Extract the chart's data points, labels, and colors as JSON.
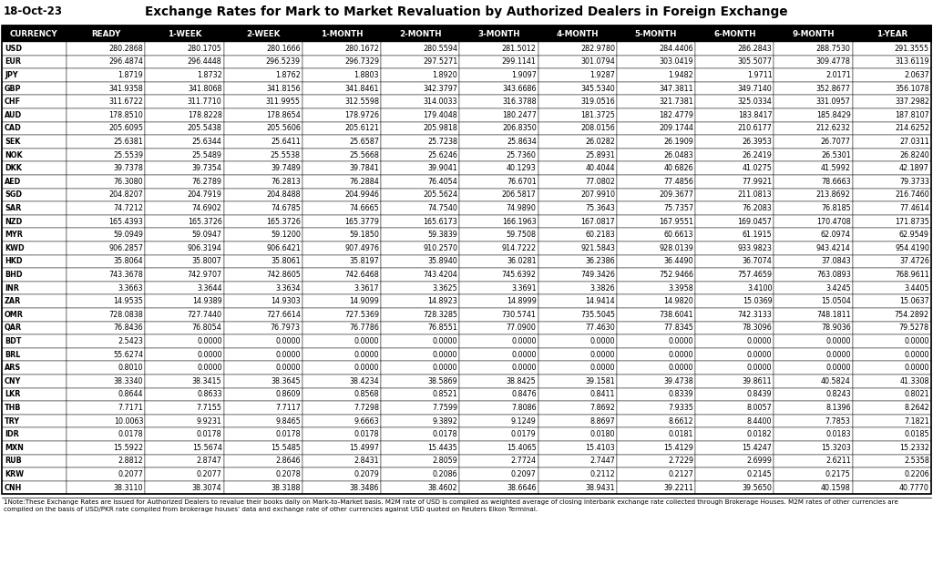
{
  "title": "Exchange Rates for Mark to Market Revaluation by Authorized Dealers in Foreign Exchange",
  "date": "18-Oct-23",
  "columns": [
    "CURRENCY",
    "READY",
    "1-WEEK",
    "2-WEEK",
    "1-MONTH",
    "2-MONTH",
    "3-MONTH",
    "4-MONTH",
    "5-MONTH",
    "6-MONTH",
    "9-MONTH",
    "1-YEAR"
  ],
  "rows": [
    [
      "USD",
      "280.2868",
      "280.1705",
      "280.1666",
      "280.1672",
      "280.5594",
      "281.5012",
      "282.9780",
      "284.4406",
      "286.2843",
      "288.7530",
      "291.3555"
    ],
    [
      "EUR",
      "296.4874",
      "296.4448",
      "296.5239",
      "296.7329",
      "297.5271",
      "299.1141",
      "301.0794",
      "303.0419",
      "305.5077",
      "309.4778",
      "313.6119"
    ],
    [
      "JPY",
      "1.8719",
      "1.8732",
      "1.8762",
      "1.8803",
      "1.8920",
      "1.9097",
      "1.9287",
      "1.9482",
      "1.9711",
      "2.0171",
      "2.0637"
    ],
    [
      "GBP",
      "341.9358",
      "341.8068",
      "341.8156",
      "341.8461",
      "342.3797",
      "343.6686",
      "345.5340",
      "347.3811",
      "349.7140",
      "352.8677",
      "356.1078"
    ],
    [
      "CHF",
      "311.6722",
      "311.7710",
      "311.9955",
      "312.5598",
      "314.0033",
      "316.3788",
      "319.0516",
      "321.7381",
      "325.0334",
      "331.0957",
      "337.2982"
    ],
    [
      "AUD",
      "178.8510",
      "178.8228",
      "178.8654",
      "178.9726",
      "179.4048",
      "180.2477",
      "181.3725",
      "182.4779",
      "183.8417",
      "185.8429",
      "187.8107"
    ],
    [
      "CAD",
      "205.6095",
      "205.5438",
      "205.5606",
      "205.6121",
      "205.9818",
      "206.8350",
      "208.0156",
      "209.1744",
      "210.6177",
      "212.6232",
      "214.6252"
    ],
    [
      "SEK",
      "25.6381",
      "25.6344",
      "25.6411",
      "25.6587",
      "25.7238",
      "25.8634",
      "26.0282",
      "26.1909",
      "26.3953",
      "26.7077",
      "27.0311"
    ],
    [
      "NOK",
      "25.5539",
      "25.5489",
      "25.5538",
      "25.5668",
      "25.6246",
      "25.7360",
      "25.8931",
      "26.0483",
      "26.2419",
      "26.5301",
      "26.8240"
    ],
    [
      "DKK",
      "39.7378",
      "39.7354",
      "39.7489",
      "39.7841",
      "39.9041",
      "40.1293",
      "40.4044",
      "40.6826",
      "41.0275",
      "41.5992",
      "42.1897"
    ],
    [
      "AED",
      "76.3080",
      "76.2789",
      "76.2813",
      "76.2884",
      "76.4054",
      "76.6701",
      "77.0802",
      "77.4856",
      "77.9921",
      "78.6663",
      "79.3733"
    ],
    [
      "SGD",
      "204.8207",
      "204.7919",
      "204.8488",
      "204.9946",
      "205.5624",
      "206.5817",
      "207.9910",
      "209.3677",
      "211.0813",
      "213.8692",
      "216.7460"
    ],
    [
      "SAR",
      "74.7212",
      "74.6902",
      "74.6785",
      "74.6665",
      "74.7540",
      "74.9890",
      "75.3643",
      "75.7357",
      "76.2083",
      "76.8185",
      "77.4614"
    ],
    [
      "NZD",
      "165.4393",
      "165.3726",
      "165.3726",
      "165.3779",
      "165.6173",
      "166.1963",
      "167.0817",
      "167.9551",
      "169.0457",
      "170.4708",
      "171.8735"
    ],
    [
      "MYR",
      "59.0949",
      "59.0947",
      "59.1200",
      "59.1850",
      "59.3839",
      "59.7508",
      "60.2183",
      "60.6613",
      "61.1915",
      "62.0974",
      "62.9549"
    ],
    [
      "KWD",
      "906.2857",
      "906.3194",
      "906.6421",
      "907.4976",
      "910.2570",
      "914.7222",
      "921.5843",
      "928.0139",
      "933.9823",
      "943.4214",
      "954.4190"
    ],
    [
      "HKD",
      "35.8064",
      "35.8007",
      "35.8061",
      "35.8197",
      "35.8940",
      "36.0281",
      "36.2386",
      "36.4490",
      "36.7074",
      "37.0843",
      "37.4726"
    ],
    [
      "BHD",
      "743.3678",
      "742.9707",
      "742.8605",
      "742.6468",
      "743.4204",
      "745.6392",
      "749.3426",
      "752.9466",
      "757.4659",
      "763.0893",
      "768.9611"
    ],
    [
      "INR",
      "3.3663",
      "3.3644",
      "3.3634",
      "3.3617",
      "3.3625",
      "3.3691",
      "3.3826",
      "3.3958",
      "3.4100",
      "3.4245",
      "3.4405"
    ],
    [
      "ZAR",
      "14.9535",
      "14.9389",
      "14.9303",
      "14.9099",
      "14.8923",
      "14.8999",
      "14.9414",
      "14.9820",
      "15.0369",
      "15.0504",
      "15.0637"
    ],
    [
      "OMR",
      "728.0838",
      "727.7440",
      "727.6614",
      "727.5369",
      "728.3285",
      "730.5741",
      "735.5045",
      "738.6041",
      "742.3133",
      "748.1811",
      "754.2892"
    ],
    [
      "QAR",
      "76.8436",
      "76.8054",
      "76.7973",
      "76.7786",
      "76.8551",
      "77.0900",
      "77.4630",
      "77.8345",
      "78.3096",
      "78.9036",
      "79.5278"
    ],
    [
      "BDT",
      "2.5423",
      "0.0000",
      "0.0000",
      "0.0000",
      "0.0000",
      "0.0000",
      "0.0000",
      "0.0000",
      "0.0000",
      "0.0000",
      "0.0000"
    ],
    [
      "BRL",
      "55.6274",
      "0.0000",
      "0.0000",
      "0.0000",
      "0.0000",
      "0.0000",
      "0.0000",
      "0.0000",
      "0.0000",
      "0.0000",
      "0.0000"
    ],
    [
      "ARS",
      "0.8010",
      "0.0000",
      "0.0000",
      "0.0000",
      "0.0000",
      "0.0000",
      "0.0000",
      "0.0000",
      "0.0000",
      "0.0000",
      "0.0000"
    ],
    [
      "CNY",
      "38.3340",
      "38.3415",
      "38.3645",
      "38.4234",
      "38.5869",
      "38.8425",
      "39.1581",
      "39.4738",
      "39.8611",
      "40.5824",
      "41.3308"
    ],
    [
      "LKR",
      "0.8644",
      "0.8633",
      "0.8609",
      "0.8568",
      "0.8521",
      "0.8476",
      "0.8411",
      "0.8339",
      "0.8439",
      "0.8243",
      "0.8021"
    ],
    [
      "THB",
      "7.7171",
      "7.7155",
      "7.7117",
      "7.7298",
      "7.7599",
      "7.8086",
      "7.8692",
      "7.9335",
      "8.0057",
      "8.1396",
      "8.2642"
    ],
    [
      "TRY",
      "10.0063",
      "9.9231",
      "9.8465",
      "9.6663",
      "9.3892",
      "9.1249",
      "8.8697",
      "8.6612",
      "8.4400",
      "7.7853",
      "7.1821"
    ],
    [
      "IDR",
      "0.0178",
      "0.0178",
      "0.0178",
      "0.0178",
      "0.0178",
      "0.0179",
      "0.0180",
      "0.0181",
      "0.0182",
      "0.0183",
      "0.0185"
    ],
    [
      "MXN",
      "15.5922",
      "15.5674",
      "15.5485",
      "15.4997",
      "15.4435",
      "15.4065",
      "15.4103",
      "15.4129",
      "15.4247",
      "15.3203",
      "15.2332"
    ],
    [
      "RUB",
      "2.8812",
      "2.8747",
      "2.8646",
      "2.8431",
      "2.8059",
      "2.7724",
      "2.7447",
      "2.7229",
      "2.6999",
      "2.6211",
      "2.5358"
    ],
    [
      "KRW",
      "0.2077",
      "0.2077",
      "0.2078",
      "0.2079",
      "0.2086",
      "0.2097",
      "0.2112",
      "0.2127",
      "0.2145",
      "0.2175",
      "0.2206"
    ],
    [
      "CNH",
      "38.3110",
      "38.3074",
      "38.3188",
      "38.3486",
      "38.4602",
      "38.6646",
      "38.9431",
      "39.2211",
      "39.5650",
      "40.1598",
      "40.7770"
    ]
  ],
  "note": "1Note:These Exchange Rates are issued for Authorized Dealers to revalue their books daily on Mark-to-Market basis. M2M rate of USD is compiled as weighted average of closing interbank exchange rate collected through Brokerage Houses. M2M rates of other currencies are compiled on the basis of USD/PKR rate compiled from brokerage houses’ data and exchange rate of other currencies against USD quoted on Reuters Eikon Terminal.",
  "header_bg": "#000000",
  "header_fg": "#ffffff",
  "border_color": "#000000",
  "title_fontsize": 9.8,
  "date_fontsize": 8.5,
  "header_fontsize": 6.3,
  "data_fontsize": 5.75,
  "note_fontsize": 5.1
}
